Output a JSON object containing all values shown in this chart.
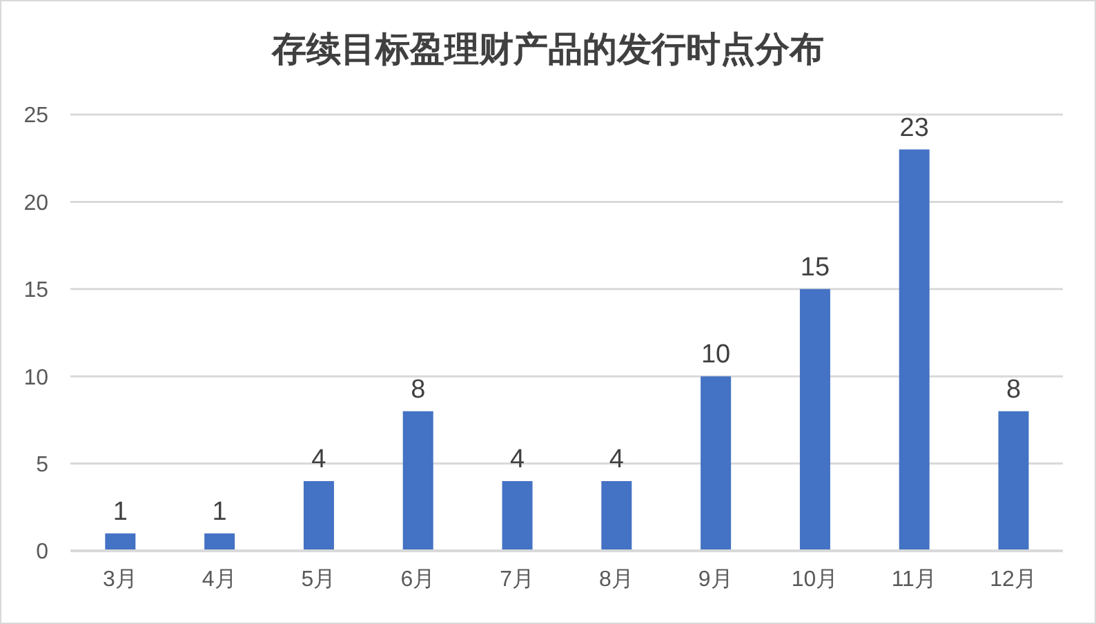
{
  "chart_data": {
    "type": "bar",
    "title": "存续目标盈理财产品的发行时点分布",
    "categories": [
      "3月",
      "4月",
      "5月",
      "6月",
      "7月",
      "8月",
      "9月",
      "10月",
      "11月",
      "12月"
    ],
    "values": [
      1,
      1,
      4,
      8,
      4,
      4,
      10,
      15,
      23,
      8
    ],
    "color": "#4472c4",
    "ylim": [
      0,
      25
    ],
    "yticks": [
      0,
      5,
      10,
      15,
      20,
      25
    ],
    "grid": "y",
    "data_labels": true
  }
}
